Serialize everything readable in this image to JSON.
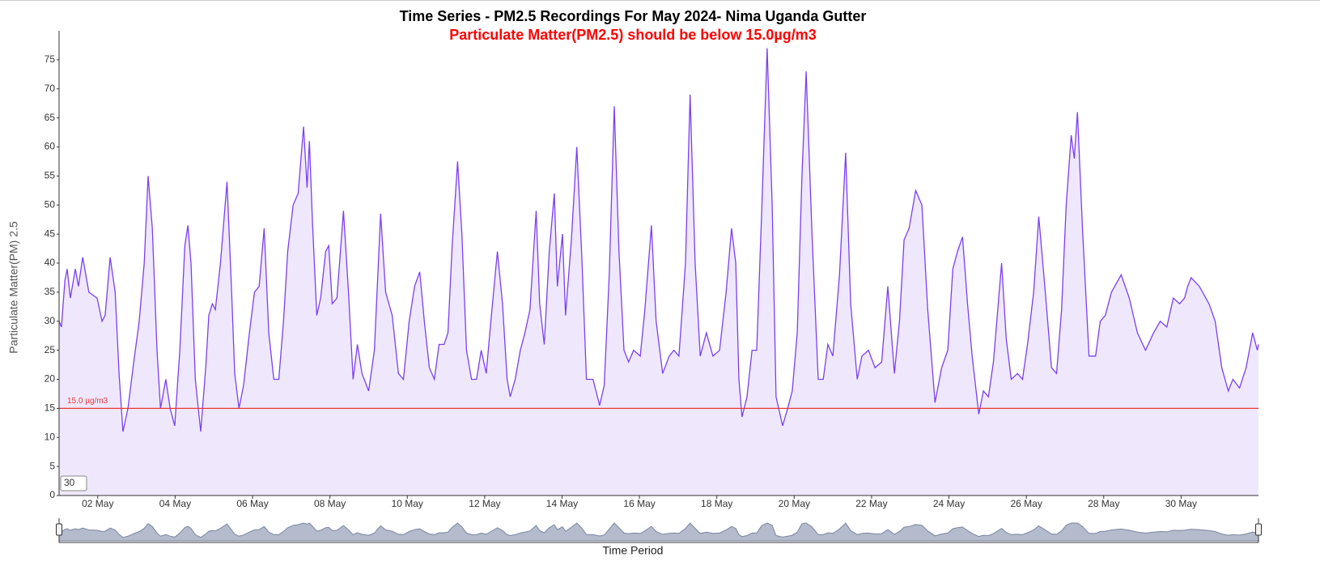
{
  "chart_data": {
    "type": "area",
    "title": "Time Series - PM2.5 Recordings For May 2024- Nima Uganda Gutter",
    "subtitle": "Particulate Matter(PM2.5) should be below 15.0µg/m3",
    "y_label": "Particulate Matter(PM) 2.5",
    "x_label": "Time Period",
    "input_value": "30",
    "threshold": {
      "value": 15,
      "label": "15.0 µg/m3",
      "color": "#e8393a"
    },
    "color": "#7b3ff2",
    "fill": "#efe8fd",
    "xlim": [
      1,
      32
    ],
    "ylim": [
      0,
      80
    ],
    "yticks": [
      0,
      5,
      10,
      15,
      20,
      25,
      30,
      35,
      40,
      45,
      50,
      55,
      60,
      65,
      70,
      75
    ],
    "xticks": [
      {
        "value": 2,
        "label": "02 May"
      },
      {
        "value": 4,
        "label": "04 May"
      },
      {
        "value": 6,
        "label": "06 May"
      },
      {
        "value": 8,
        "label": "08 May"
      },
      {
        "value": 10,
        "label": "10 May"
      },
      {
        "value": 12,
        "label": "12 May"
      },
      {
        "value": 14,
        "label": "14 May"
      },
      {
        "value": 16,
        "label": "16 May"
      },
      {
        "value": 18,
        "label": "18 May"
      },
      {
        "value": 20,
        "label": "20 May"
      },
      {
        "value": 22,
        "label": "22 May"
      },
      {
        "value": 24,
        "label": "24 May"
      },
      {
        "value": 26,
        "label": "26 May"
      },
      {
        "value": 28,
        "label": "28 May"
      },
      {
        "value": 30,
        "label": "30 May"
      }
    ],
    "x": [
      1.0,
      1.06,
      1.15,
      1.21,
      1.29,
      1.42,
      1.5,
      1.61,
      1.77,
      1.98,
      2.11,
      2.19,
      2.32,
      2.45,
      2.55,
      2.65,
      2.78,
      2.93,
      3.07,
      3.2,
      3.3,
      3.41,
      3.53,
      3.62,
      3.76,
      3.87,
      3.99,
      4.12,
      4.25,
      4.33,
      4.41,
      4.52,
      4.66,
      4.79,
      4.87,
      4.96,
      5.04,
      5.17,
      5.34,
      5.46,
      5.54,
      5.65,
      5.77,
      5.92,
      6.05,
      6.17,
      6.3,
      6.42,
      6.55,
      6.68,
      6.8,
      6.91,
      7.05,
      7.18,
      7.32,
      7.41,
      7.47,
      7.55,
      7.66,
      7.76,
      7.89,
      7.97,
      8.06,
      8.18,
      8.35,
      8.48,
      8.6,
      8.71,
      8.83,
      9.0,
      9.15,
      9.31,
      9.44,
      9.61,
      9.77,
      9.9,
      10.05,
      10.19,
      10.32,
      10.44,
      10.57,
      10.7,
      10.82,
      10.95,
      11.05,
      11.16,
      11.3,
      11.41,
      11.53,
      11.66,
      11.79,
      11.91,
      12.04,
      12.16,
      12.33,
      12.46,
      12.58,
      12.66,
      12.79,
      12.92,
      13.04,
      13.17,
      13.33,
      13.42,
      13.54,
      13.67,
      13.8,
      13.88,
      14.01,
      14.09,
      14.24,
      14.38,
      14.51,
      14.63,
      14.8,
      14.97,
      15.09,
      15.22,
      15.35,
      15.47,
      15.6,
      15.72,
      15.85,
      16.02,
      16.14,
      16.31,
      16.43,
      16.6,
      16.77,
      16.89,
      17.02,
      17.19,
      17.31,
      17.44,
      17.57,
      17.73,
      17.9,
      18.07,
      18.24,
      18.38,
      18.49,
      18.57,
      18.65,
      18.78,
      18.91,
      19.03,
      19.16,
      19.3,
      19.43,
      19.53,
      19.7,
      19.83,
      19.95,
      20.08,
      20.2,
      20.31,
      20.46,
      20.62,
      20.75,
      20.87,
      21.0,
      21.17,
      21.33,
      21.46,
      21.63,
      21.75,
      21.92,
      22.09,
      22.26,
      22.42,
      22.59,
      22.72,
      22.84,
      22.97,
      23.14,
      23.3,
      23.45,
      23.64,
      23.81,
      23.97,
      24.1,
      24.22,
      24.35,
      24.48,
      24.6,
      24.77,
      24.89,
      25.02,
      25.15,
      25.36,
      25.48,
      25.61,
      25.77,
      25.9,
      26.03,
      26.19,
      26.32,
      26.49,
      26.65,
      26.78,
      26.91,
      27.03,
      27.16,
      27.24,
      27.32,
      27.45,
      27.62,
      27.79,
      27.91,
      28.04,
      28.2,
      28.45,
      28.66,
      28.87,
      29.08,
      29.29,
      29.46,
      29.63,
      29.8,
      29.96,
      30.09,
      30.17,
      30.26,
      30.47,
      30.72,
      30.88,
      31.05,
      31.22,
      31.34,
      31.51,
      31.68,
      31.85,
      31.97,
      32.0
    ],
    "values": [
      30,
      29,
      37,
      39,
      34,
      39,
      36,
      41,
      35,
      34,
      30,
      31,
      41,
      35,
      21,
      11,
      15,
      23,
      30,
      40,
      55,
      46,
      25,
      15,
      20,
      15,
      12,
      25,
      43,
      46.5,
      40,
      20,
      11,
      22,
      31,
      33,
      32,
      40,
      54,
      35,
      21,
      15,
      19,
      28,
      35,
      36,
      46,
      28,
      20,
      20,
      30,
      42,
      50,
      52,
      63.5,
      53,
      61,
      47,
      31,
      34,
      42,
      43,
      33,
      34,
      49,
      35,
      20,
      26,
      21,
      18,
      25,
      48.5,
      35,
      31,
      21,
      20,
      30,
      36,
      38.5,
      30,
      22,
      20,
      26,
      26,
      28,
      43,
      57.5,
      45,
      25,
      20,
      20,
      25,
      21,
      30,
      42,
      33,
      20,
      17,
      20,
      25,
      28,
      32,
      49,
      33,
      26,
      42,
      52,
      36,
      45,
      31,
      44,
      60,
      41,
      20,
      20,
      15.5,
      19,
      38,
      67,
      42,
      25,
      23,
      25,
      24,
      32,
      46.5,
      30,
      21,
      24,
      25,
      24,
      40,
      69,
      40,
      24,
      28,
      24,
      25,
      35,
      46,
      40,
      20,
      13.5,
      17,
      25,
      25,
      49,
      77,
      50,
      17,
      12,
      15,
      18,
      28,
      55,
      73,
      45,
      20,
      20,
      26,
      24,
      38,
      59,
      33,
      20,
      24,
      25,
      22,
      23,
      36,
      21,
      30,
      44,
      46,
      52.5,
      50,
      32,
      16,
      22,
      25,
      39,
      42,
      44.5,
      33,
      24,
      14,
      18,
      17,
      23,
      40,
      27,
      20,
      21,
      20,
      26,
      35,
      48,
      35,
      22,
      21,
      32,
      50,
      62,
      58,
      66,
      46,
      24,
      24,
      30,
      31,
      35,
      38,
      34,
      28,
      25,
      28,
      30,
      29,
      34,
      33,
      34,
      36,
      37.5,
      36,
      33,
      30,
      22,
      18,
      20,
      18.5,
      22,
      28,
      25,
      26
    ]
  }
}
